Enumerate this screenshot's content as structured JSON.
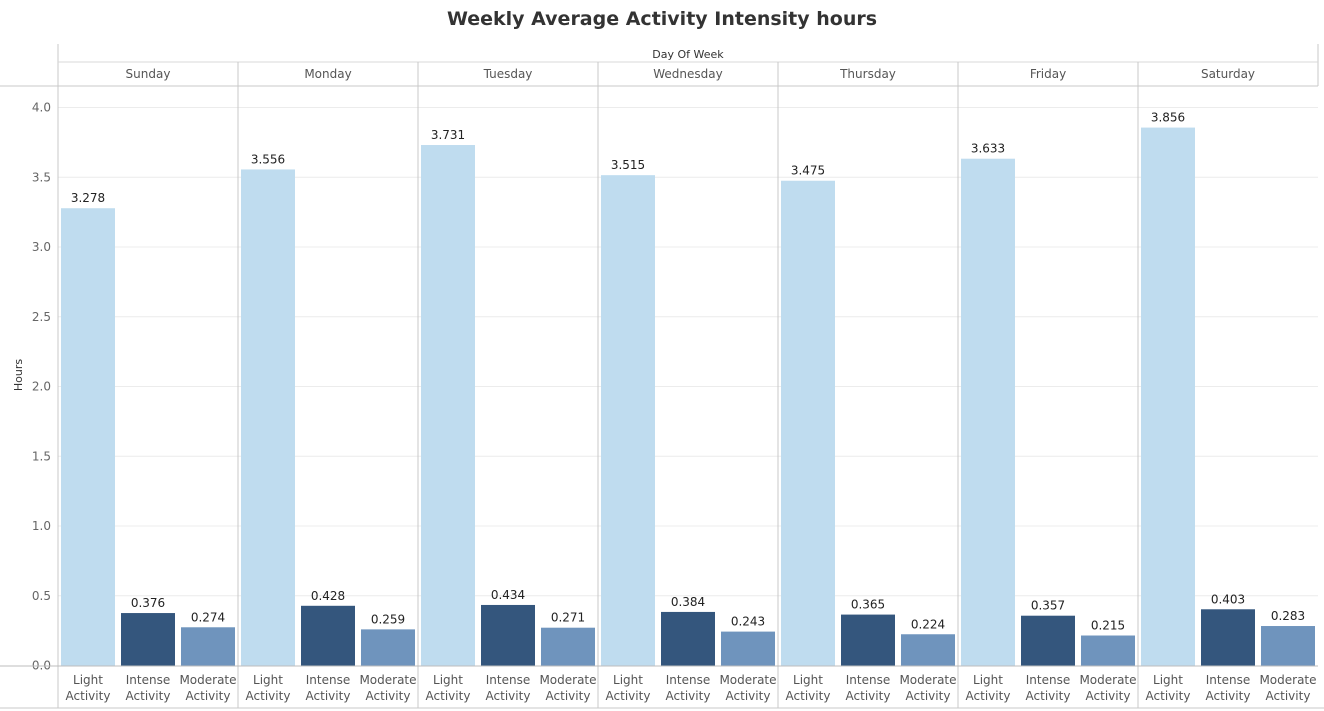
{
  "chart_data": {
    "type": "bar",
    "title": "Weekly Average Activity Intensity hours",
    "column_header": "Day Of Week",
    "ylabel": "Hours",
    "ylim": [
      0,
      4.0
    ],
    "yticks": [
      "0.0",
      "0.5",
      "1.0",
      "1.5",
      "2.0",
      "2.5",
      "3.0",
      "3.5",
      "4.0"
    ],
    "grid": true,
    "groups": [
      "Sunday",
      "Monday",
      "Tuesday",
      "Wednesday",
      "Thursday",
      "Friday",
      "Saturday"
    ],
    "categories": [
      [
        "Light",
        "Activity"
      ],
      [
        "Intense",
        "Activity"
      ],
      [
        "Moderate",
        "Activity"
      ]
    ],
    "colors": [
      "#bfdcef",
      "#34567d",
      "#6f94bd"
    ],
    "values": [
      [
        3.278,
        0.376,
        0.274
      ],
      [
        3.556,
        0.428,
        0.259
      ],
      [
        3.731,
        0.434,
        0.271
      ],
      [
        3.515,
        0.384,
        0.243
      ],
      [
        3.475,
        0.365,
        0.224
      ],
      [
        3.633,
        0.357,
        0.215
      ],
      [
        3.856,
        0.403,
        0.283
      ]
    ],
    "value_labels": [
      [
        "3.278",
        "0.376",
        "0.274"
      ],
      [
        "3.556",
        "0.428",
        "0.259"
      ],
      [
        "3.731",
        "0.434",
        "0.271"
      ],
      [
        "3.515",
        "0.384",
        "0.243"
      ],
      [
        "3.475",
        "0.365",
        "0.224"
      ],
      [
        "3.633",
        "0.357",
        "0.215"
      ],
      [
        "3.856",
        "0.403",
        "0.283"
      ]
    ]
  }
}
